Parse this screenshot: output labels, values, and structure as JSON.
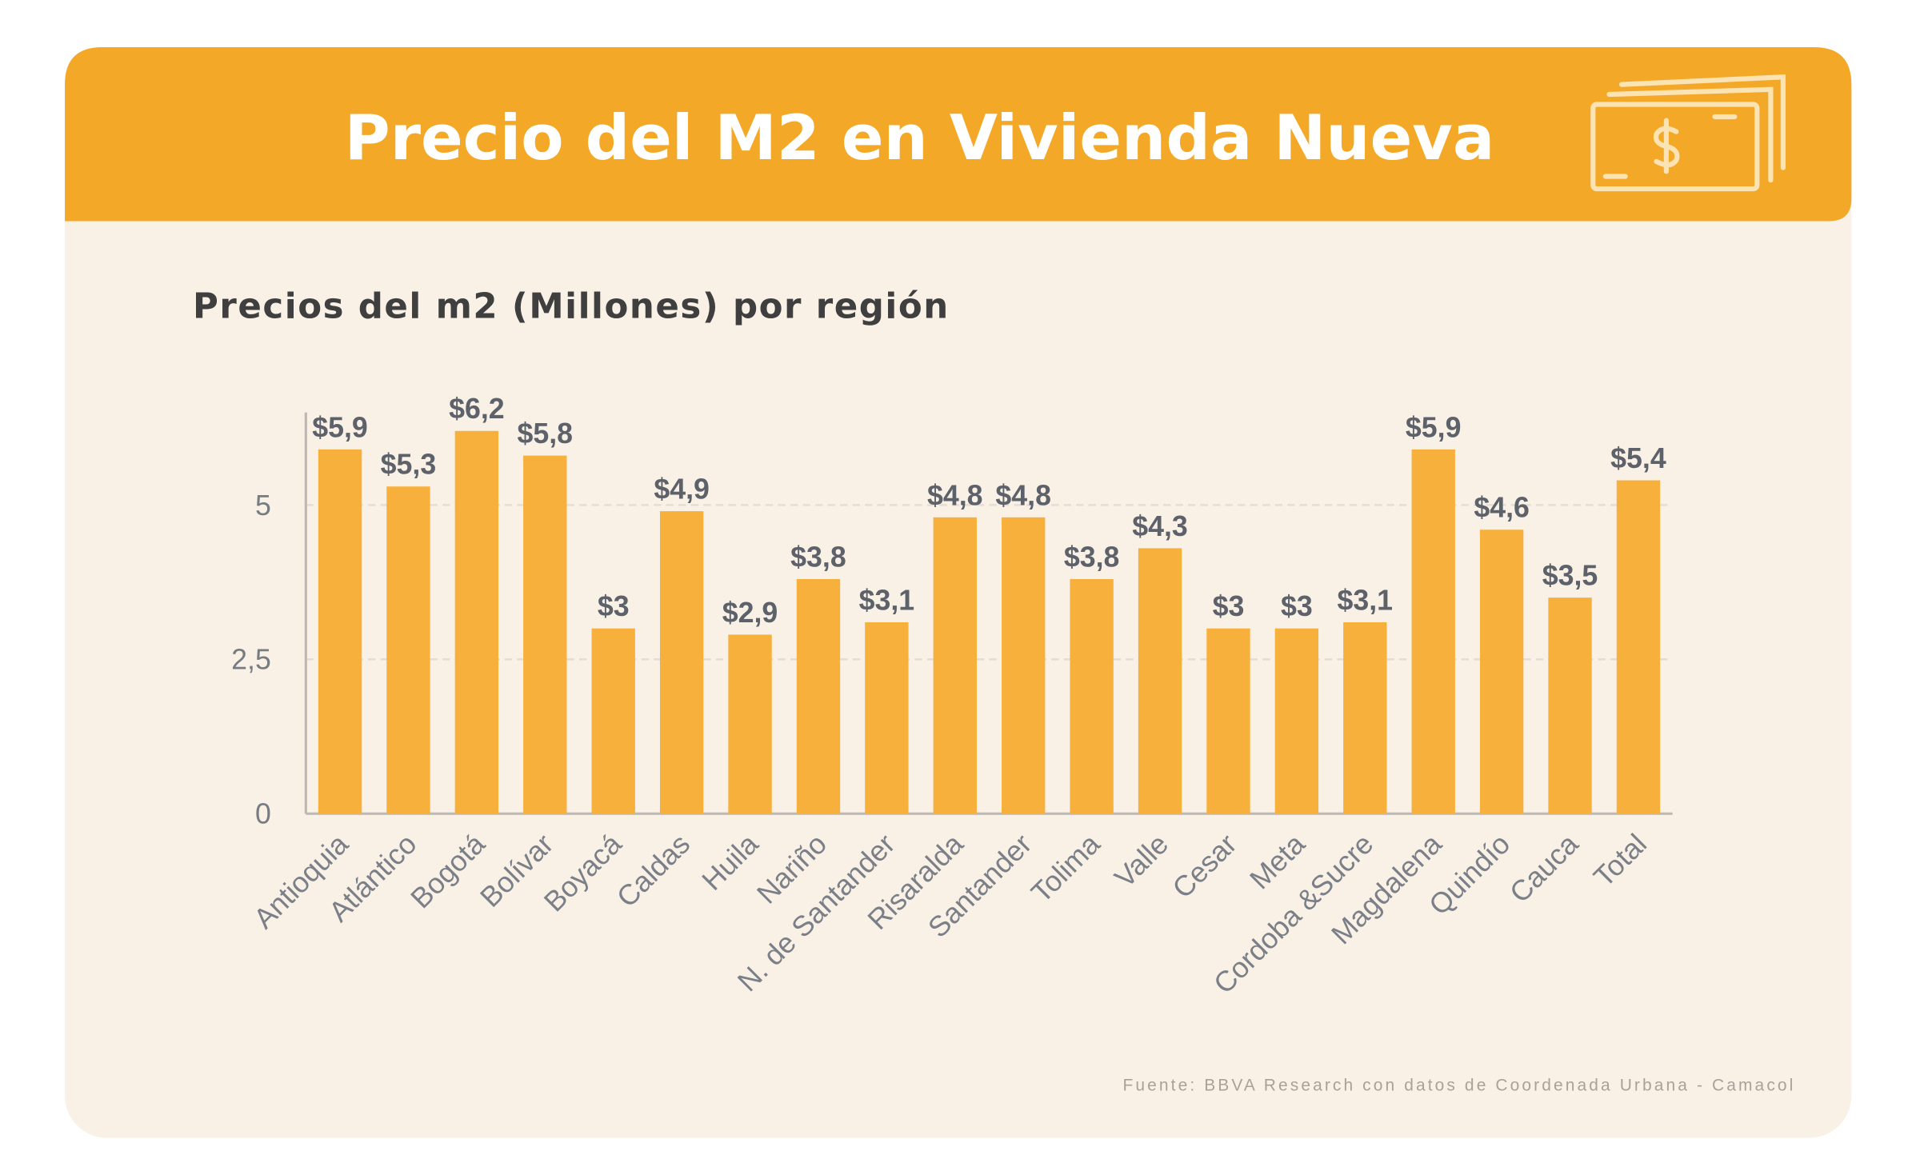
{
  "header": {
    "title": "Precio del M2 en Vivienda Nueva"
  },
  "chart_data": {
    "type": "bar",
    "title": "Precios del m2 (Millones) por región",
    "source": "Fuente: BBVA Research con datos de Coordenada Urbana - Camacol",
    "categories": [
      "Antioquia",
      "Atlántico",
      "Bogotá",
      "Bolívar",
      "Boyacá",
      "Caldas",
      "Huila",
      "Nariño",
      "N. de Santander",
      "Risaralda",
      "Santander",
      "Tolima",
      "Valle",
      "Cesar",
      "Meta",
      "Cordoba &Sucre",
      "Magdalena",
      "Quindío",
      "Cauca",
      "Total"
    ],
    "values": [
      5.9,
      5.3,
      6.2,
      5.8,
      3,
      4.9,
      2.9,
      3.8,
      3.1,
      4.8,
      4.8,
      3.8,
      4.3,
      3,
      3,
      3.1,
      5.9,
      4.6,
      3.5,
      5.4
    ],
    "value_labels": [
      "$5,9",
      "$5,3",
      "$6,2",
      "$5,8",
      "$3",
      "$4,9",
      "$2,9",
      "$3,8",
      "$3,1",
      "$4,8",
      "$4,8",
      "$3,8",
      "$4,3",
      "$3",
      "$3",
      "$3,1",
      "$5,9",
      "$4,6",
      "$3,5",
      "$5,4"
    ],
    "color": "#f7b03c",
    "ylim": [
      0,
      6.5
    ],
    "yticks": [
      0,
      {
        "value": 2.5,
        "label": "2,5"
      },
      5
    ],
    "grid": true
  }
}
